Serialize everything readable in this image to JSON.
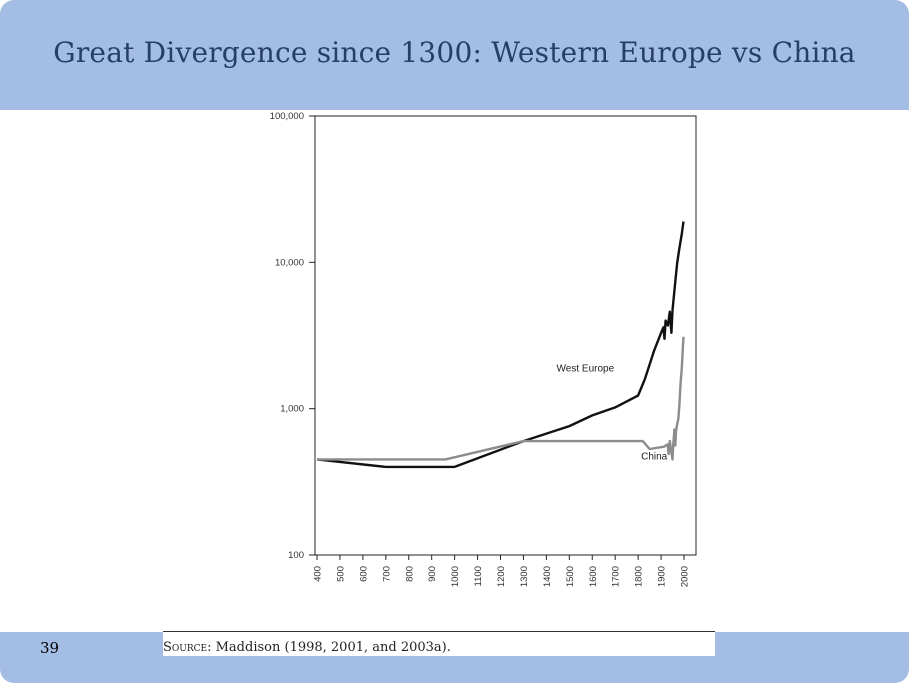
{
  "slide": {
    "title": "Great Divergence since 1300: Western Europe vs China",
    "page_number": "39",
    "source_label": "Source:",
    "source_text": "Maddison (1998, 2001, and 2003a)."
  },
  "chart_data": {
    "type": "line",
    "title": "",
    "xlabel": "",
    "ylabel": "",
    "y_scale": "log",
    "ylim": [
      100,
      100000
    ],
    "xlim": [
      400,
      2000
    ],
    "y_ticks": [
      {
        "value": 100,
        "label": "100"
      },
      {
        "value": 1000,
        "label": "1,000"
      },
      {
        "value": 10000,
        "label": "10,000"
      },
      {
        "value": 100000,
        "label": "100,000"
      }
    ],
    "x_ticks": [
      {
        "value": 400,
        "label": "400"
      },
      {
        "value": 500,
        "label": "500"
      },
      {
        "value": 600,
        "label": "600"
      },
      {
        "value": 700,
        "label": "700"
      },
      {
        "value": 800,
        "label": "800"
      },
      {
        "value": 900,
        "label": "900"
      },
      {
        "value": 1000,
        "label": "1000"
      },
      {
        "value": 1100,
        "label": "1100"
      },
      {
        "value": 1200,
        "label": "1200"
      },
      {
        "value": 1300,
        "label": "1300"
      },
      {
        "value": 1400,
        "label": "1400"
      },
      {
        "value": 1500,
        "label": "1500"
      },
      {
        "value": 1600,
        "label": "1600"
      },
      {
        "value": 1700,
        "label": "1700"
      },
      {
        "value": 1800,
        "label": "1800"
      },
      {
        "value": 1900,
        "label": "1900"
      },
      {
        "value": 2000,
        "label": "2000"
      }
    ],
    "grid": false,
    "series": [
      {
        "name": "West Europe",
        "color": "#111111",
        "label_at": [
          1570,
          1800
        ],
        "points": [
          [
            400,
            450
          ],
          [
            700,
            400
          ],
          [
            1000,
            400
          ],
          [
            1300,
            600
          ],
          [
            1500,
            760
          ],
          [
            1600,
            900
          ],
          [
            1700,
            1020
          ],
          [
            1800,
            1230
          ],
          [
            1830,
            1600
          ],
          [
            1870,
            2500
          ],
          [
            1900,
            3300
          ],
          [
            1910,
            3600
          ],
          [
            1915,
            3000
          ],
          [
            1920,
            4000
          ],
          [
            1930,
            3700
          ],
          [
            1938,
            4600
          ],
          [
            1942,
            3800
          ],
          [
            1945,
            3300
          ],
          [
            1950,
            4700
          ],
          [
            1960,
            6800
          ],
          [
            1970,
            9800
          ],
          [
            1980,
            12500
          ],
          [
            1990,
            15500
          ],
          [
            1998,
            19000
          ]
        ]
      },
      {
        "name": "China",
        "color": "#8c8c8c",
        "label_at": [
          1870,
          450
        ],
        "points": [
          [
            400,
            450
          ],
          [
            960,
            450
          ],
          [
            1300,
            600
          ],
          [
            1500,
            600
          ],
          [
            1600,
            600
          ],
          [
            1700,
            600
          ],
          [
            1820,
            600
          ],
          [
            1850,
            530
          ],
          [
            1900,
            545
          ],
          [
            1913,
            550
          ],
          [
            1929,
            570
          ],
          [
            1933,
            490
          ],
          [
            1938,
            600
          ],
          [
            1945,
            500
          ],
          [
            1950,
            450
          ],
          [
            1953,
            560
          ],
          [
            1958,
            720
          ],
          [
            1960,
            670
          ],
          [
            1962,
            560
          ],
          [
            1965,
            700
          ],
          [
            1970,
            780
          ],
          [
            1975,
            850
          ],
          [
            1980,
            1060
          ],
          [
            1985,
            1500
          ],
          [
            1990,
            1850
          ],
          [
            1995,
            2650
          ],
          [
            1998,
            3100
          ]
        ]
      }
    ]
  }
}
